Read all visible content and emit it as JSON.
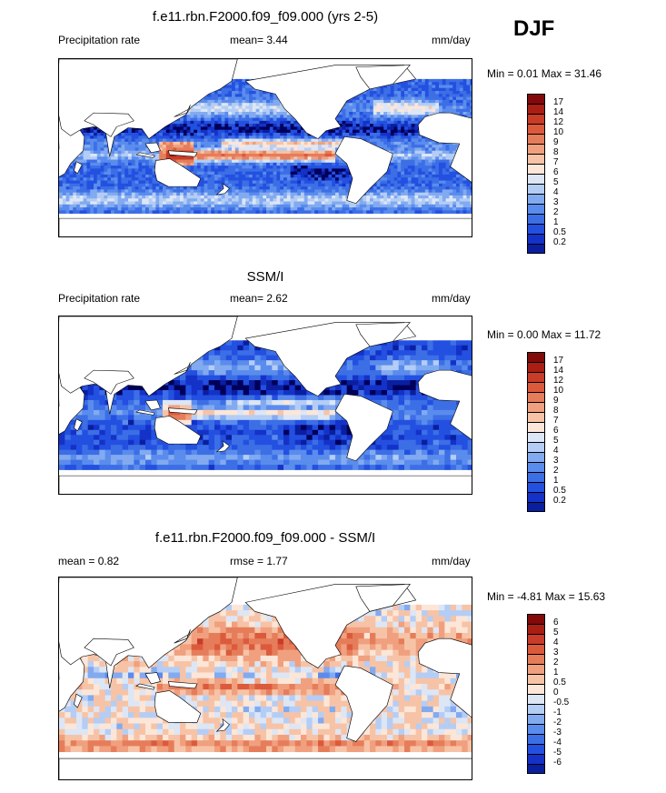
{
  "season": "DJF",
  "colors": {
    "precip": [
      "#00005a",
      "#0a1ea0",
      "#1432c8",
      "#2350e0",
      "#3c6ee6",
      "#5a8ced",
      "#82aaf0",
      "#b4cdf5",
      "#dce6f5",
      "#fce6d8",
      "#f7c3a6",
      "#f0a07e",
      "#e67d5a",
      "#dc5a3c",
      "#c83c28",
      "#aa1e14",
      "#820a0a"
    ],
    "diff": [
      "#00005a",
      "#0a1ea0",
      "#1432c8",
      "#2350e0",
      "#3c6ee6",
      "#5a8ced",
      "#82aaf0",
      "#b4cdf5",
      "#dce6f5",
      "#fce6d8",
      "#f7c3a6",
      "#f0a07e",
      "#e67d5a",
      "#dc5a3c",
      "#c83c28",
      "#aa1e14",
      "#820a0a"
    ]
  },
  "chart_data": [
    {
      "type": "heatmap",
      "title": "f.e11.rbn.F2000.f09_f09.000 (yrs 2-5)",
      "left_label": "Precipitation rate",
      "mean_text": "mean=   3.44",
      "units": "mm/day",
      "minmax_text": "Min =   0.01 Max =  31.46",
      "levels": [
        "0.2",
        "0.5",
        "1",
        "2",
        "3",
        "4",
        "5",
        "6",
        "7",
        "8",
        "9",
        "10",
        "12",
        "14",
        "17"
      ],
      "field": "model"
    },
    {
      "type": "heatmap",
      "title": "SSM/I",
      "left_label": "Precipitation rate",
      "mean_text": "mean=   2.62",
      "units": "mm/day",
      "minmax_text": "Min =   0.00 Max =  11.72",
      "levels": [
        "0.2",
        "0.5",
        "1",
        "2",
        "3",
        "4",
        "5",
        "6",
        "7",
        "8",
        "9",
        "10",
        "12",
        "14",
        "17"
      ],
      "field": "obs"
    },
    {
      "type": "heatmap",
      "title": "f.e11.rbn.F2000.f09_f09.000 - SSM/I",
      "left_label": "mean =   0.82",
      "mean_text": "rmse =   1.77",
      "units": "mm/day",
      "minmax_text": "Min =  -4.81 Max =  15.63",
      "levels": [
        "-6",
        "-5",
        "-4",
        "-3",
        "-2",
        "-1",
        "-0.5",
        "0",
        "0.5",
        "1",
        "2",
        "3",
        "4",
        "5",
        "6"
      ],
      "field": "diff"
    }
  ]
}
